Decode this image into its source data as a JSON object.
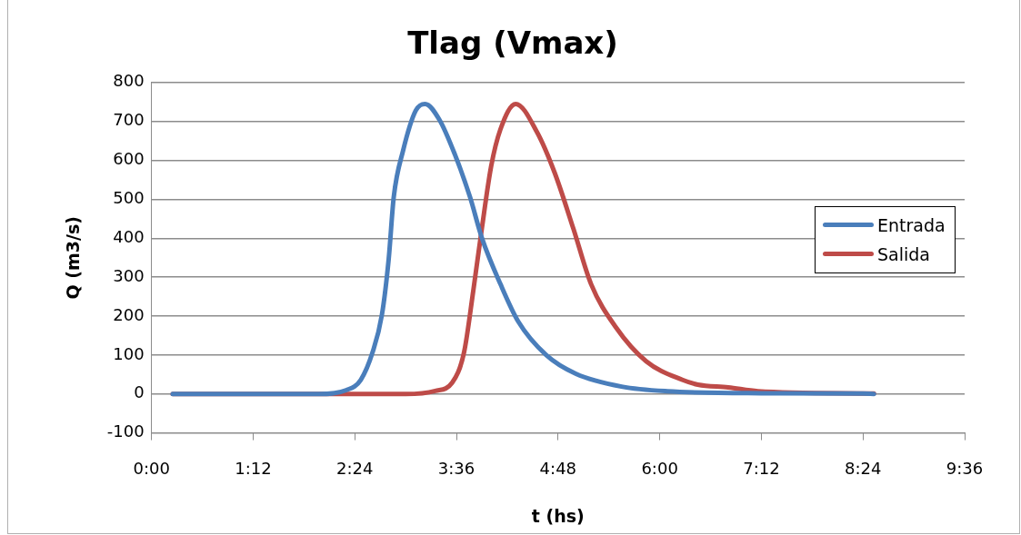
{
  "chart_data": {
    "type": "line",
    "title": "Tlag (Vmax)",
    "xlabel": "t (hs)",
    "ylabel": "Q (m3/s)",
    "xlim": [
      0,
      9.6
    ],
    "xticks": [
      {
        "value": 0,
        "label": "0:00"
      },
      {
        "value": 1.2,
        "label": "1:12"
      },
      {
        "value": 2.4,
        "label": "2:24"
      },
      {
        "value": 3.6,
        "label": "3:36"
      },
      {
        "value": 4.8,
        "label": "4:48"
      },
      {
        "value": 6.0,
        "label": "6:00"
      },
      {
        "value": 7.2,
        "label": "7:12"
      },
      {
        "value": 8.4,
        "label": "8:24"
      },
      {
        "value": 9.6,
        "label": "9:36"
      }
    ],
    "ylim": [
      -100,
      800
    ],
    "yticks": [
      -100,
      0,
      100,
      200,
      300,
      400,
      500,
      600,
      700,
      800
    ],
    "grid": "y",
    "legend": "right",
    "marker": "none",
    "line_style": "solid",
    "series": [
      {
        "name": "Entrada",
        "color": "#4a7ebb",
        "x": [
          0.25,
          1.97,
          2.3,
          2.47,
          2.61,
          2.72,
          2.8,
          2.86,
          2.97,
          3.12,
          3.23,
          3.4,
          3.58,
          3.76,
          3.9,
          4.12,
          4.33,
          4.66,
          5.01,
          5.55,
          6.09,
          7.2,
          8.4,
          8.53
        ],
        "values": [
          0,
          0,
          10,
          36,
          107,
          203,
          346,
          506,
          625,
          728,
          745,
          704,
          616,
          506,
          401,
          282,
          186,
          100,
          52,
          19,
          7,
          2,
          1,
          0
        ]
      },
      {
        "name": "Salida",
        "color": "#be4b48",
        "x": [
          0.25,
          3.0,
          3.35,
          3.55,
          3.69,
          3.8,
          3.9,
          4.01,
          4.12,
          4.3,
          4.55,
          4.76,
          4.98,
          5.19,
          5.48,
          5.84,
          6.27,
          6.45,
          6.81,
          7.16,
          8.53
        ],
        "values": [
          0,
          0,
          8,
          29,
          107,
          267,
          425,
          585,
          680,
          745,
          673,
          568,
          425,
          282,
          172,
          84,
          36,
          24,
          17,
          7,
          1
        ]
      }
    ]
  }
}
